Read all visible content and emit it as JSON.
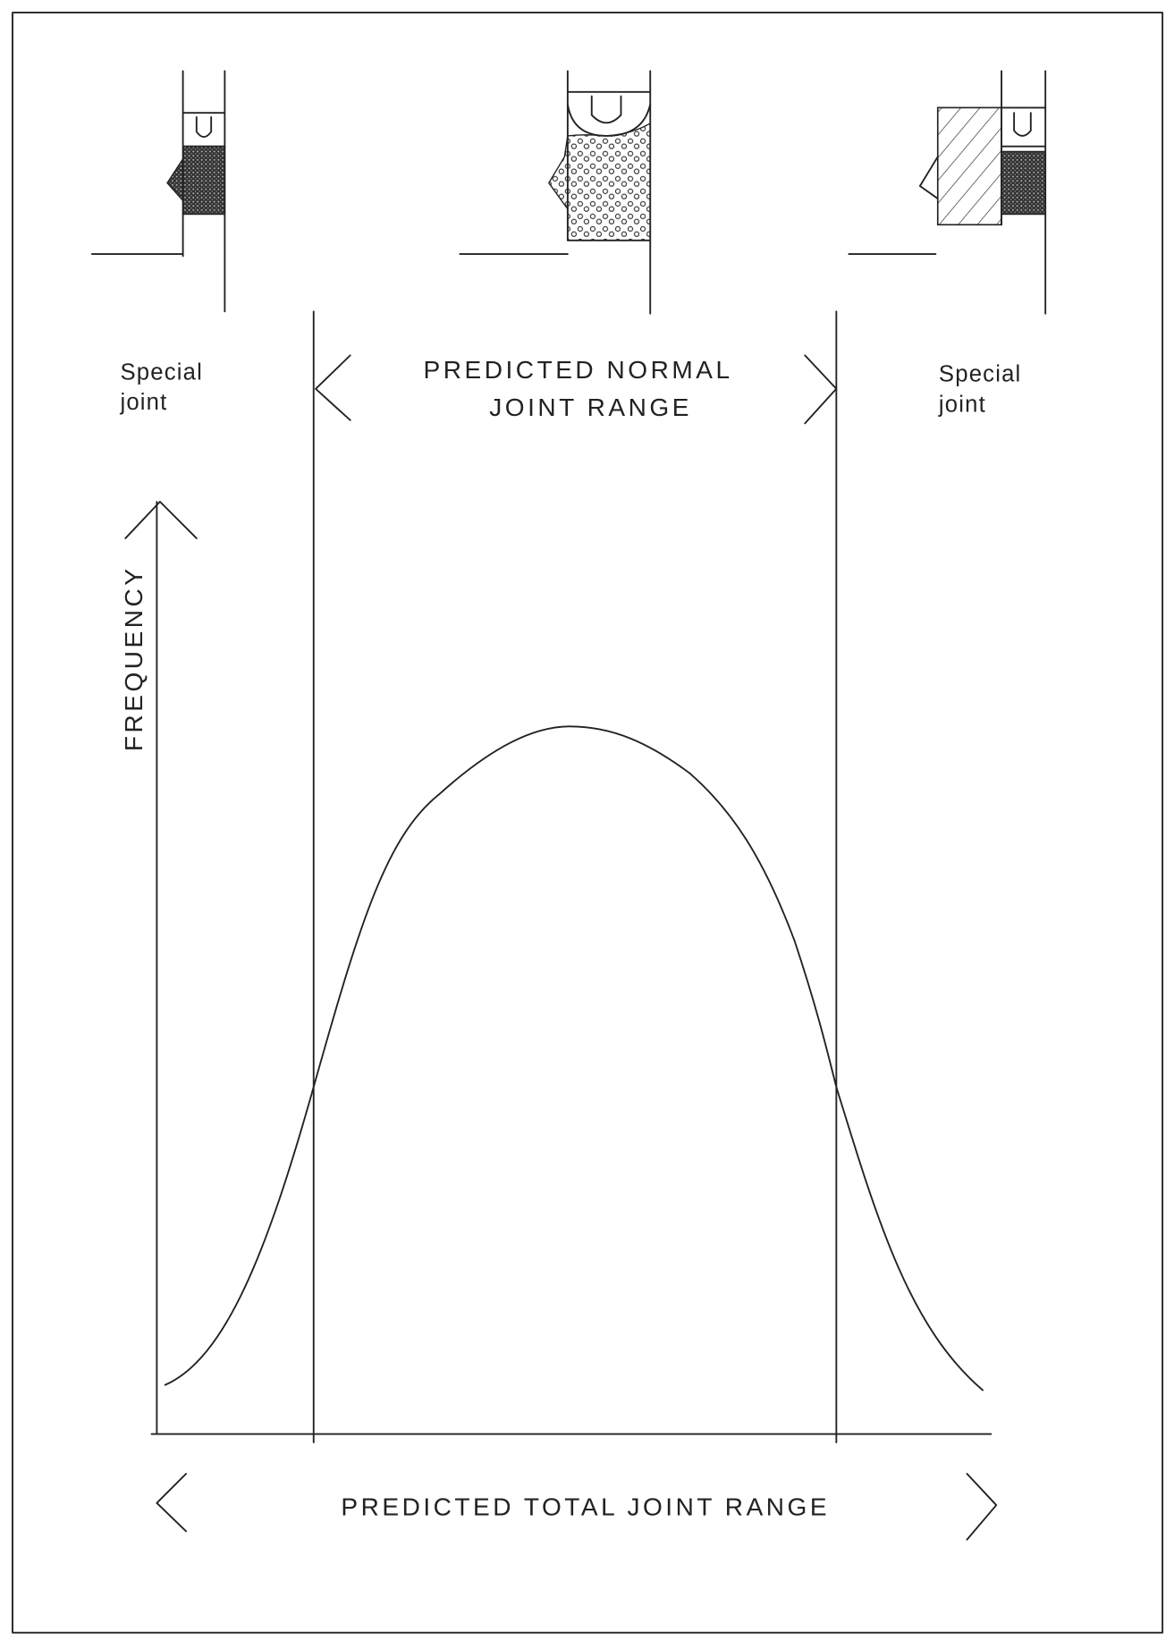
{
  "special_joint_left": {
    "line1": "Special",
    "line2": "joint"
  },
  "normal_range": {
    "line1": "PREDICTED NORMAL",
    "line2": "JOINT RANGE"
  },
  "special_joint_right": {
    "line1": "Special",
    "line2": "joint"
  },
  "y_axis_label": "FREQUENCY",
  "total_range": "PREDICTED TOTAL JOINT RANGE"
}
